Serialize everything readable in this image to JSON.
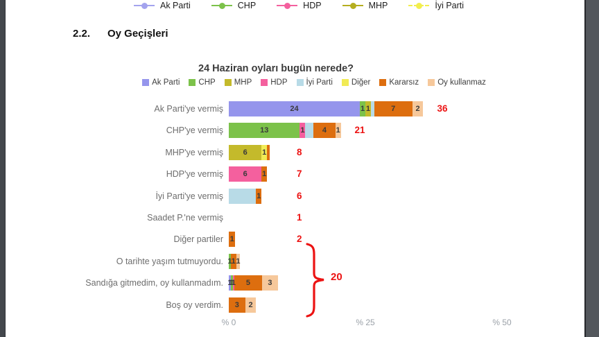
{
  "top_legend": {
    "items": [
      {
        "label": "Ak Parti",
        "color": "#a3a3ee",
        "line": "solid"
      },
      {
        "label": "CHP",
        "color": "#7cc24a",
        "line": "solid"
      },
      {
        "label": "HDP",
        "color": "#f4609e",
        "line": "solid"
      },
      {
        "label": "MHP",
        "color": "#b5ae1f",
        "line": "solid"
      },
      {
        "label": "İyi Parti",
        "color": "#f2ee4e",
        "line": "dashed"
      }
    ]
  },
  "heading": {
    "number": "2.2.",
    "title": "Oy Geçişleri"
  },
  "chart": {
    "title": "24 Haziran oyları bugün nerede?",
    "accent_red": "#ec1313",
    "parties": [
      {
        "id": "akp",
        "label": "Ak Parti",
        "color": "#9595ec"
      },
      {
        "id": "chp",
        "label": "CHP",
        "color": "#7cc24a"
      },
      {
        "id": "mhp",
        "label": "MHP",
        "color": "#c4ba2b"
      },
      {
        "id": "hdp",
        "label": "HDP",
        "color": "#f4609e"
      },
      {
        "id": "iyi",
        "label": "İyi Parti",
        "color": "#b8dbe7"
      },
      {
        "id": "diger",
        "label": "Diğer",
        "color": "#f1eb55"
      },
      {
        "id": "kararsiz",
        "label": "Kararsız",
        "color": "#dd6e0f"
      },
      {
        "id": "oykullanmaz",
        "label": "Oy kullanmaz",
        "color": "#f6c89b"
      }
    ],
    "rows": [
      {
        "label": "Ak Parti'ye vermiş",
        "total": "36",
        "segments": [
          {
            "party": "akp",
            "value": 24,
            "label": "24"
          },
          {
            "party": "chp",
            "value": 1,
            "label": "1"
          },
          {
            "party": "mhp",
            "value": 1,
            "label": "1"
          },
          {
            "party": "iyi",
            "value": 0.6,
            "label": ""
          },
          {
            "party": "kararsiz",
            "value": 7,
            "label": "7"
          },
          {
            "party": "oykullanmaz",
            "value": 2,
            "label": "2"
          }
        ]
      },
      {
        "label": "CHP'ye vermiş",
        "total": "21",
        "segments": [
          {
            "party": "chp",
            "value": 13,
            "label": "13"
          },
          {
            "party": "hdp",
            "value": 1,
            "label": "1"
          },
          {
            "party": "iyi",
            "value": 1.5,
            "label": ""
          },
          {
            "party": "kararsiz",
            "value": 4,
            "label": "4"
          },
          {
            "party": "oykullanmaz",
            "value": 1,
            "label": "1"
          }
        ]
      },
      {
        "label": "MHP'ye vermiş",
        "total": "8",
        "segments": [
          {
            "party": "mhp",
            "value": 6,
            "label": "6"
          },
          {
            "party": "diger",
            "value": 1,
            "label": "1"
          },
          {
            "party": "kararsiz",
            "value": 0.5,
            "label": ""
          }
        ]
      },
      {
        "label": "HDP'ye vermiş",
        "total": "7",
        "segments": [
          {
            "party": "hdp",
            "value": 6,
            "label": "6"
          },
          {
            "party": "kararsiz",
            "value": 1,
            "label": "1"
          }
        ]
      },
      {
        "label": "İyi Parti'ye vermiş",
        "total": "6",
        "segments": [
          {
            "party": "iyi",
            "value": 5,
            "label": ""
          },
          {
            "party": "kararsiz",
            "value": 1,
            "label": "1"
          }
        ]
      },
      {
        "label": "Saadet P.'ne vermiş",
        "total": "1",
        "segments": []
      },
      {
        "label": "Diğer partiler",
        "total": "2",
        "segments": [
          {
            "party": "kararsiz",
            "value": 1.2,
            "label": "1"
          }
        ]
      },
      {
        "label": "O tarihte yaşım tutmuyordu.",
        "total": "",
        "segments": [
          {
            "party": "chp",
            "value": 0.35,
            "label": "1"
          },
          {
            "party": "kararsiz",
            "value": 1,
            "label": "1"
          },
          {
            "party": "oykullanmaz",
            "value": 0.7,
            "label": "1"
          }
        ]
      },
      {
        "label": "Sandığa gitmedim, oy kullanmadım.",
        "total": "",
        "segments": [
          {
            "party": "akp",
            "value": 0.35,
            "label": "1"
          },
          {
            "party": "chp",
            "value": 0.35,
            "label": "1"
          },
          {
            "party": "hdp",
            "value": 0.35,
            "label": "1"
          },
          {
            "party": "kararsiz",
            "value": 5,
            "label": "5"
          },
          {
            "party": "oykullanmaz",
            "value": 3,
            "label": "3"
          }
        ]
      },
      {
        "label": "Boş oy verdim.",
        "total": "",
        "segments": [
          {
            "party": "kararsiz",
            "value": 3,
            "label": "3"
          },
          {
            "party": "oykullanmaz",
            "value": 2,
            "label": "2"
          }
        ]
      }
    ],
    "axis_ticks": [
      {
        "value": 0,
        "label": "% 0"
      },
      {
        "value": 25,
        "label": "% 25"
      },
      {
        "value": 50,
        "label": "% 50"
      }
    ],
    "group_total": "20"
  },
  "chart_data": {
    "type": "bar",
    "orientation": "horizontal",
    "stacked": true,
    "title": "24 Haziran oyları bugün nerede?",
    "categories": [
      "Ak Parti'ye vermiş",
      "CHP'ye vermiş",
      "MHP'ye vermiş",
      "HDP'ye vermiş",
      "İyi Parti'ye vermiş",
      "Saadet P.'ne vermiş",
      "Diğer partiler",
      "O tarihte yaşım tutmuyordu.",
      "Sandığa gitmedim, oy kullanmadım.",
      "Boş oy verdim."
    ],
    "series": [
      {
        "name": "Ak Parti",
        "values": [
          24,
          0,
          0,
          0,
          0,
          0,
          0,
          0,
          1,
          0
        ]
      },
      {
        "name": "CHP",
        "values": [
          1,
          13,
          0,
          0,
          0,
          0,
          0,
          1,
          1,
          0
        ]
      },
      {
        "name": "MHP",
        "values": [
          1,
          0,
          6,
          0,
          0,
          0,
          0,
          0,
          0,
          0
        ]
      },
      {
        "name": "HDP",
        "values": [
          0,
          1,
          0,
          6,
          0,
          0,
          0,
          0,
          1,
          0
        ]
      },
      {
        "name": "İyi Parti",
        "values": [
          1,
          2,
          0,
          0,
          5,
          0,
          0,
          0,
          0,
          0
        ]
      },
      {
        "name": "Diğer",
        "values": [
          0,
          0,
          1,
          0,
          0,
          0,
          0,
          0,
          0,
          0
        ]
      },
      {
        "name": "Kararsız",
        "values": [
          7,
          4,
          1,
          1,
          1,
          0,
          1,
          1,
          5,
          3
        ]
      },
      {
        "name": "Oy kullanmaz",
        "values": [
          2,
          1,
          0,
          0,
          0,
          0,
          0,
          1,
          3,
          2
        ]
      }
    ],
    "row_totals": [
      36,
      21,
      8,
      7,
      6,
      1,
      2,
      null,
      null,
      null
    ],
    "group_total": {
      "label": "20",
      "applies_to": [
        "O tarihte yaşım tutmuyordu.",
        "Sandığa gitmedim, oy kullanmadım.",
        "Boş oy verdim."
      ]
    },
    "x_ticks": [
      "% 0",
      "% 25",
      "% 50"
    ],
    "xlim": [
      0,
      50
    ],
    "legend_position": "top",
    "grid": false
  }
}
